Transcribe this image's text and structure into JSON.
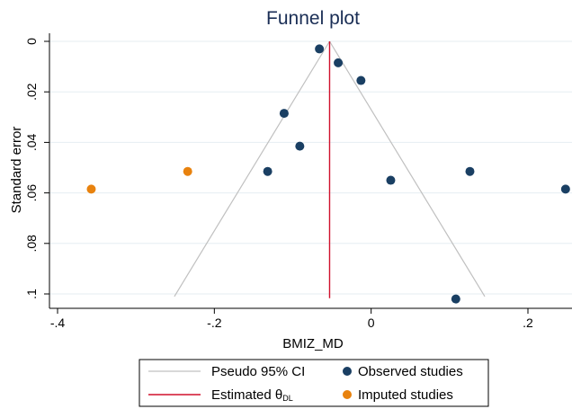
{
  "chart_data": {
    "type": "scatter",
    "title": "Funnel plot",
    "xlabel": "BMIZ_MD",
    "ylabel": "Standard error",
    "xlim": [
      -0.41,
      0.25
    ],
    "ylim": [
      0,
      0.103
    ],
    "y_reversed": true,
    "x_ticks": [
      -0.4,
      -0.2,
      0,
      0.2
    ],
    "x_tick_labels": [
      "-.4",
      "-.2",
      "0",
      ".2"
    ],
    "y_ticks": [
      0,
      0.02,
      0.04,
      0.06,
      0.08,
      0.1
    ],
    "y_tick_labels": [
      "0",
      ".02",
      ".04",
      ".06",
      ".08",
      ".1"
    ],
    "grid": true,
    "legend_position": "bottom",
    "estimate": -0.053,
    "ci_se_max": 0.101,
    "series": [
      {
        "name": "Observed studies",
        "color": "#1a3f63",
        "x": [
          -0.066,
          -0.042,
          -0.013,
          -0.111,
          -0.091,
          -0.132,
          0.025,
          0.126,
          0.248,
          0.108
        ],
        "y": [
          0.003,
          0.0085,
          0.0155,
          0.0285,
          0.0415,
          0.0515,
          0.055,
          0.0515,
          0.0585,
          0.102
        ]
      },
      {
        "name": "Imputed studies",
        "color": "#e8820e",
        "x": [
          -0.234,
          -0.357
        ],
        "y": [
          0.0515,
          0.0585
        ]
      }
    ],
    "lines": [
      {
        "name": "Pseudo 95% CI",
        "color": "#c0c0c0"
      },
      {
        "name": "Estimated θ",
        "subscript": "DL",
        "color": "#d0102c"
      }
    ]
  }
}
